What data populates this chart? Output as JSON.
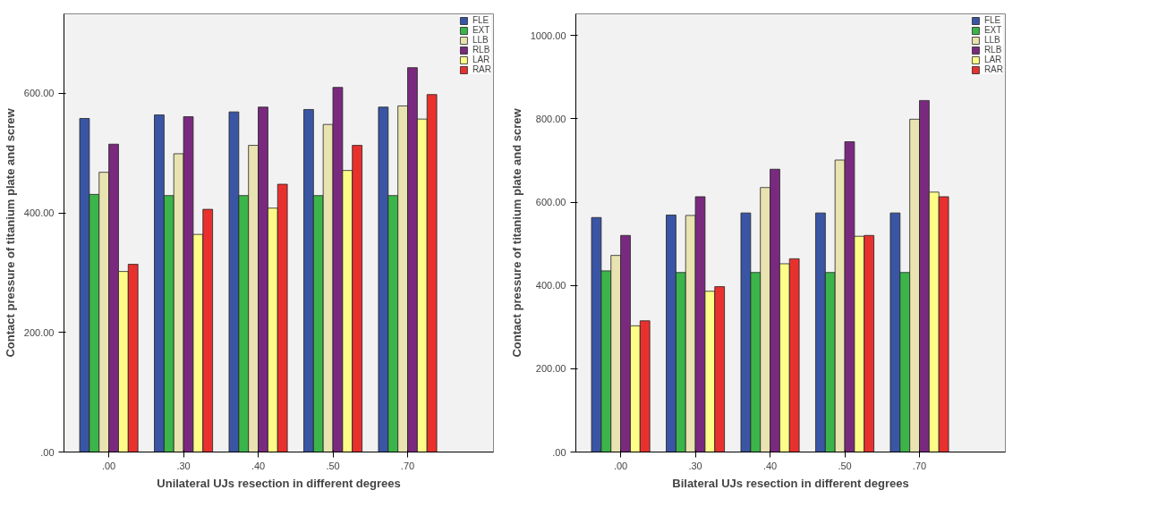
{
  "chart_data": [
    {
      "type": "bar",
      "xlabel": "Unilateral UJs resection in different degrees",
      "ylabel": "Contact pressure of titanium plate and screw",
      "categories": [
        ".00",
        ".30",
        ".40",
        ".50",
        ".70"
      ],
      "ylim": [
        0,
        733
      ],
      "yticks": [
        {
          "value": 0,
          "label": ".00"
        },
        {
          "value": 200,
          "label": "200.00"
        },
        {
          "value": 400,
          "label": "400.00"
        },
        {
          "value": 600,
          "label": "600.00"
        }
      ],
      "grid": false,
      "legend": "top right",
      "series": [
        {
          "name": "FLE",
          "color": "#3a55a4",
          "values": [
            558,
            564,
            569,
            573,
            577
          ]
        },
        {
          "name": "EXT",
          "color": "#3bb54a",
          "values": [
            431,
            429,
            429,
            429,
            429
          ]
        },
        {
          "name": "LLB",
          "color": "#e8e3b0",
          "values": [
            468,
            499,
            513,
            548,
            579
          ]
        },
        {
          "name": "RLB",
          "color": "#7a2a7e",
          "values": [
            515,
            561,
            577,
            610,
            643
          ]
        },
        {
          "name": "LAR",
          "color": "#fdfd88",
          "values": [
            302,
            364,
            408,
            471,
            557
          ]
        },
        {
          "name": "RAR",
          "color": "#e8312e",
          "values": [
            314,
            406,
            448,
            513,
            598
          ]
        }
      ]
    },
    {
      "type": "bar",
      "xlabel": "Bilateral UJs resection in different degrees",
      "ylabel": "Contact pressure of titanium plate and screw",
      "categories": [
        ".00",
        ".30",
        ".40",
        ".50",
        ".70"
      ],
      "ylim": [
        0,
        1052
      ],
      "yticks": [
        {
          "value": 0,
          "label": ".00"
        },
        {
          "value": 200,
          "label": "200.00"
        },
        {
          "value": 400,
          "label": "400.00"
        },
        {
          "value": 600,
          "label": "600.00"
        },
        {
          "value": 800,
          "label": "800.00"
        },
        {
          "value": 1000,
          "label": "1000.00"
        }
      ],
      "grid": false,
      "legend": "top right",
      "series": [
        {
          "name": "FLE",
          "color": "#3a55a4",
          "values": [
            563,
            569,
            574,
            574,
            574
          ]
        },
        {
          "name": "EXT",
          "color": "#3bb54a",
          "values": [
            435,
            431,
            431,
            431,
            431
          ]
        },
        {
          "name": "LLB",
          "color": "#e8e3b0",
          "values": [
            472,
            568,
            635,
            701,
            799
          ]
        },
        {
          "name": "RLB",
          "color": "#7a2a7e",
          "values": [
            520,
            613,
            679,
            745,
            844
          ]
        },
        {
          "name": "LAR",
          "color": "#fdfd88",
          "values": [
            303,
            386,
            452,
            518,
            624
          ]
        },
        {
          "name": "RAR",
          "color": "#e8312e",
          "values": [
            315,
            397,
            464,
            520,
            613
          ]
        }
      ]
    }
  ]
}
